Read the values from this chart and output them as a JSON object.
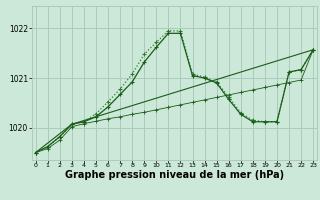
{
  "bg_color": "#cce8d8",
  "grid_color": "#aaccbb",
  "line_color_dark": "#1a5c1a",
  "line_color_mid": "#2e7d2e",
  "xlabel": "Graphe pression niveau de la mer (hPa)",
  "xlabel_fontsize": 7,
  "xticks": [
    0,
    1,
    2,
    3,
    4,
    5,
    6,
    7,
    8,
    9,
    10,
    11,
    12,
    13,
    14,
    15,
    16,
    17,
    18,
    19,
    20,
    21,
    22,
    23
  ],
  "yticks": [
    1020,
    1021,
    1022
  ],
  "ylim": [
    1019.35,
    1022.45
  ],
  "xlim": [
    -0.3,
    23.3
  ],
  "series1_x": [
    0,
    1,
    2,
    3,
    4,
    5,
    6,
    7,
    8,
    9,
    10,
    11,
    12,
    13,
    14,
    15,
    16,
    17,
    18,
    19,
    20,
    21,
    22,
    23
  ],
  "series1_y": [
    1019.5,
    1019.62,
    1019.82,
    1020.07,
    1020.12,
    1020.28,
    1020.52,
    1020.78,
    1021.08,
    1021.48,
    1021.72,
    1021.95,
    1021.95,
    1021.08,
    1021.02,
    1020.92,
    1020.62,
    1020.3,
    1020.15,
    1020.12,
    1020.12,
    1021.12,
    1021.17,
    1021.57
  ],
  "series2_x": [
    0,
    1,
    2,
    3,
    4,
    5,
    6,
    7,
    8,
    9,
    10,
    11,
    12,
    13,
    14,
    15,
    16,
    17,
    18,
    19,
    20,
    21,
    22,
    23
  ],
  "series2_y": [
    1019.5,
    1019.62,
    1019.82,
    1020.07,
    1020.12,
    1020.22,
    1020.42,
    1020.67,
    1020.92,
    1021.32,
    1021.62,
    1021.9,
    1021.9,
    1021.05,
    1021.0,
    1020.9,
    1020.57,
    1020.27,
    1020.12,
    1020.12,
    1020.12,
    1021.12,
    1021.17,
    1021.57
  ],
  "series3_x": [
    0,
    3,
    23
  ],
  "series3_y": [
    1019.5,
    1020.07,
    1021.57
  ],
  "series4_x": [
    0,
    1,
    2,
    3,
    4,
    5,
    6,
    7,
    8,
    9,
    10,
    11,
    12,
    13,
    14,
    15,
    16,
    17,
    18,
    19,
    20,
    21,
    22,
    23
  ],
  "series4_y": [
    1019.5,
    1019.58,
    1019.75,
    1020.02,
    1020.08,
    1020.13,
    1020.18,
    1020.22,
    1020.27,
    1020.31,
    1020.36,
    1020.41,
    1020.46,
    1020.51,
    1020.56,
    1020.61,
    1020.66,
    1020.71,
    1020.76,
    1020.81,
    1020.86,
    1020.91,
    1020.96,
    1021.57
  ]
}
